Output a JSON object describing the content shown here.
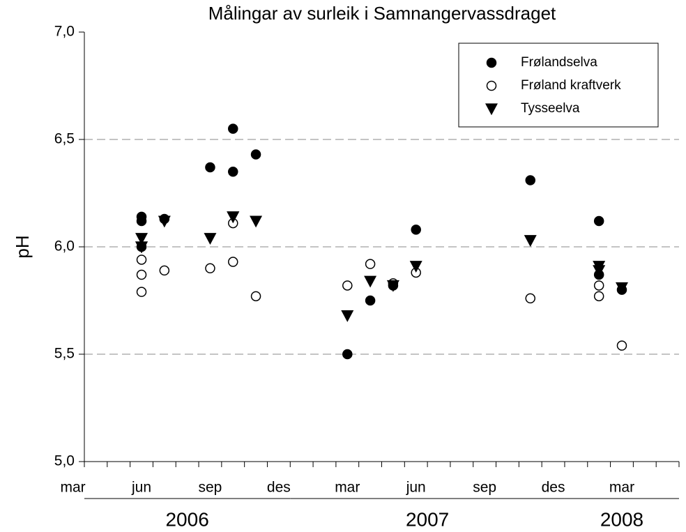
{
  "chart_data": {
    "type": "scatter",
    "title": "Målingar av surleik i Samnangervassdraget",
    "y_label": "pH",
    "x": [
      "2006-06",
      "2006-06",
      "2006-06",
      "2006-07",
      "2006-09",
      "2006-10",
      "2006-10",
      "2006-11",
      "2007-03",
      "2007-04",
      "2007-05",
      "2007-06",
      "2007-11",
      "2008-02",
      "2008-02",
      "2008-03"
    ],
    "series": [
      {
        "name": "Frølandselva",
        "marker": "circle",
        "color": "#000000",
        "fill": "#000000",
        "values": [
          6.12,
          6.0,
          6.14,
          6.13,
          6.37,
          6.55,
          6.35,
          6.43,
          5.5,
          5.75,
          5.82,
          6.08,
          6.31,
          6.12,
          5.87,
          5.8
        ]
      },
      {
        "name": "Frøland kraftverk",
        "marker": "circle",
        "color": "#000000",
        "fill": "#ffffff",
        "values": [
          5.94,
          5.79,
          5.87,
          5.89,
          5.9,
          5.93,
          6.11,
          5.77,
          5.82,
          5.92,
          5.83,
          5.88,
          5.76,
          5.82,
          5.77,
          5.54
        ]
      },
      {
        "name": "Tysseelva",
        "marker": "triangle-down",
        "color": "#000000",
        "fill": "#000000",
        "values": [
          6.04,
          6.0,
          6.0,
          6.12,
          6.04,
          6.14,
          6.14,
          6.12,
          5.68,
          5.84,
          5.82,
          5.91,
          6.03,
          5.89,
          5.91,
          5.81
        ]
      }
    ],
    "xlim": [
      "2006-04",
      "2008-05"
    ],
    "xticks": [
      {
        "value": "2006-03",
        "label": "mar"
      },
      {
        "value": "2006-06",
        "label": "jun"
      },
      {
        "value": "2006-09",
        "label": "sep"
      },
      {
        "value": "2006-12",
        "label": "des"
      },
      {
        "value": "2007-03",
        "label": "mar"
      },
      {
        "value": "2007-06",
        "label": "jun"
      },
      {
        "value": "2007-09",
        "label": "sep"
      },
      {
        "value": "2007-12",
        "label": "des"
      },
      {
        "value": "2008-03",
        "label": "mar"
      }
    ],
    "years": [
      {
        "label": "2006",
        "from": "2006-04",
        "to": "2006-12"
      },
      {
        "label": "2007",
        "from": "2007-01",
        "to": "2007-12"
      },
      {
        "label": "2008",
        "from": "2008-01",
        "to": "2008-05"
      }
    ],
    "ylim": [
      5.0,
      7.0
    ],
    "yticks": [
      {
        "value": 5.0,
        "label": "5,0"
      },
      {
        "value": 5.5,
        "label": "5,5"
      },
      {
        "value": 6.0,
        "label": "6,0"
      },
      {
        "value": 6.5,
        "label": "6,5"
      },
      {
        "value": 7.0,
        "label": "7,0"
      }
    ],
    "grid": true,
    "legend": "top-right"
  }
}
